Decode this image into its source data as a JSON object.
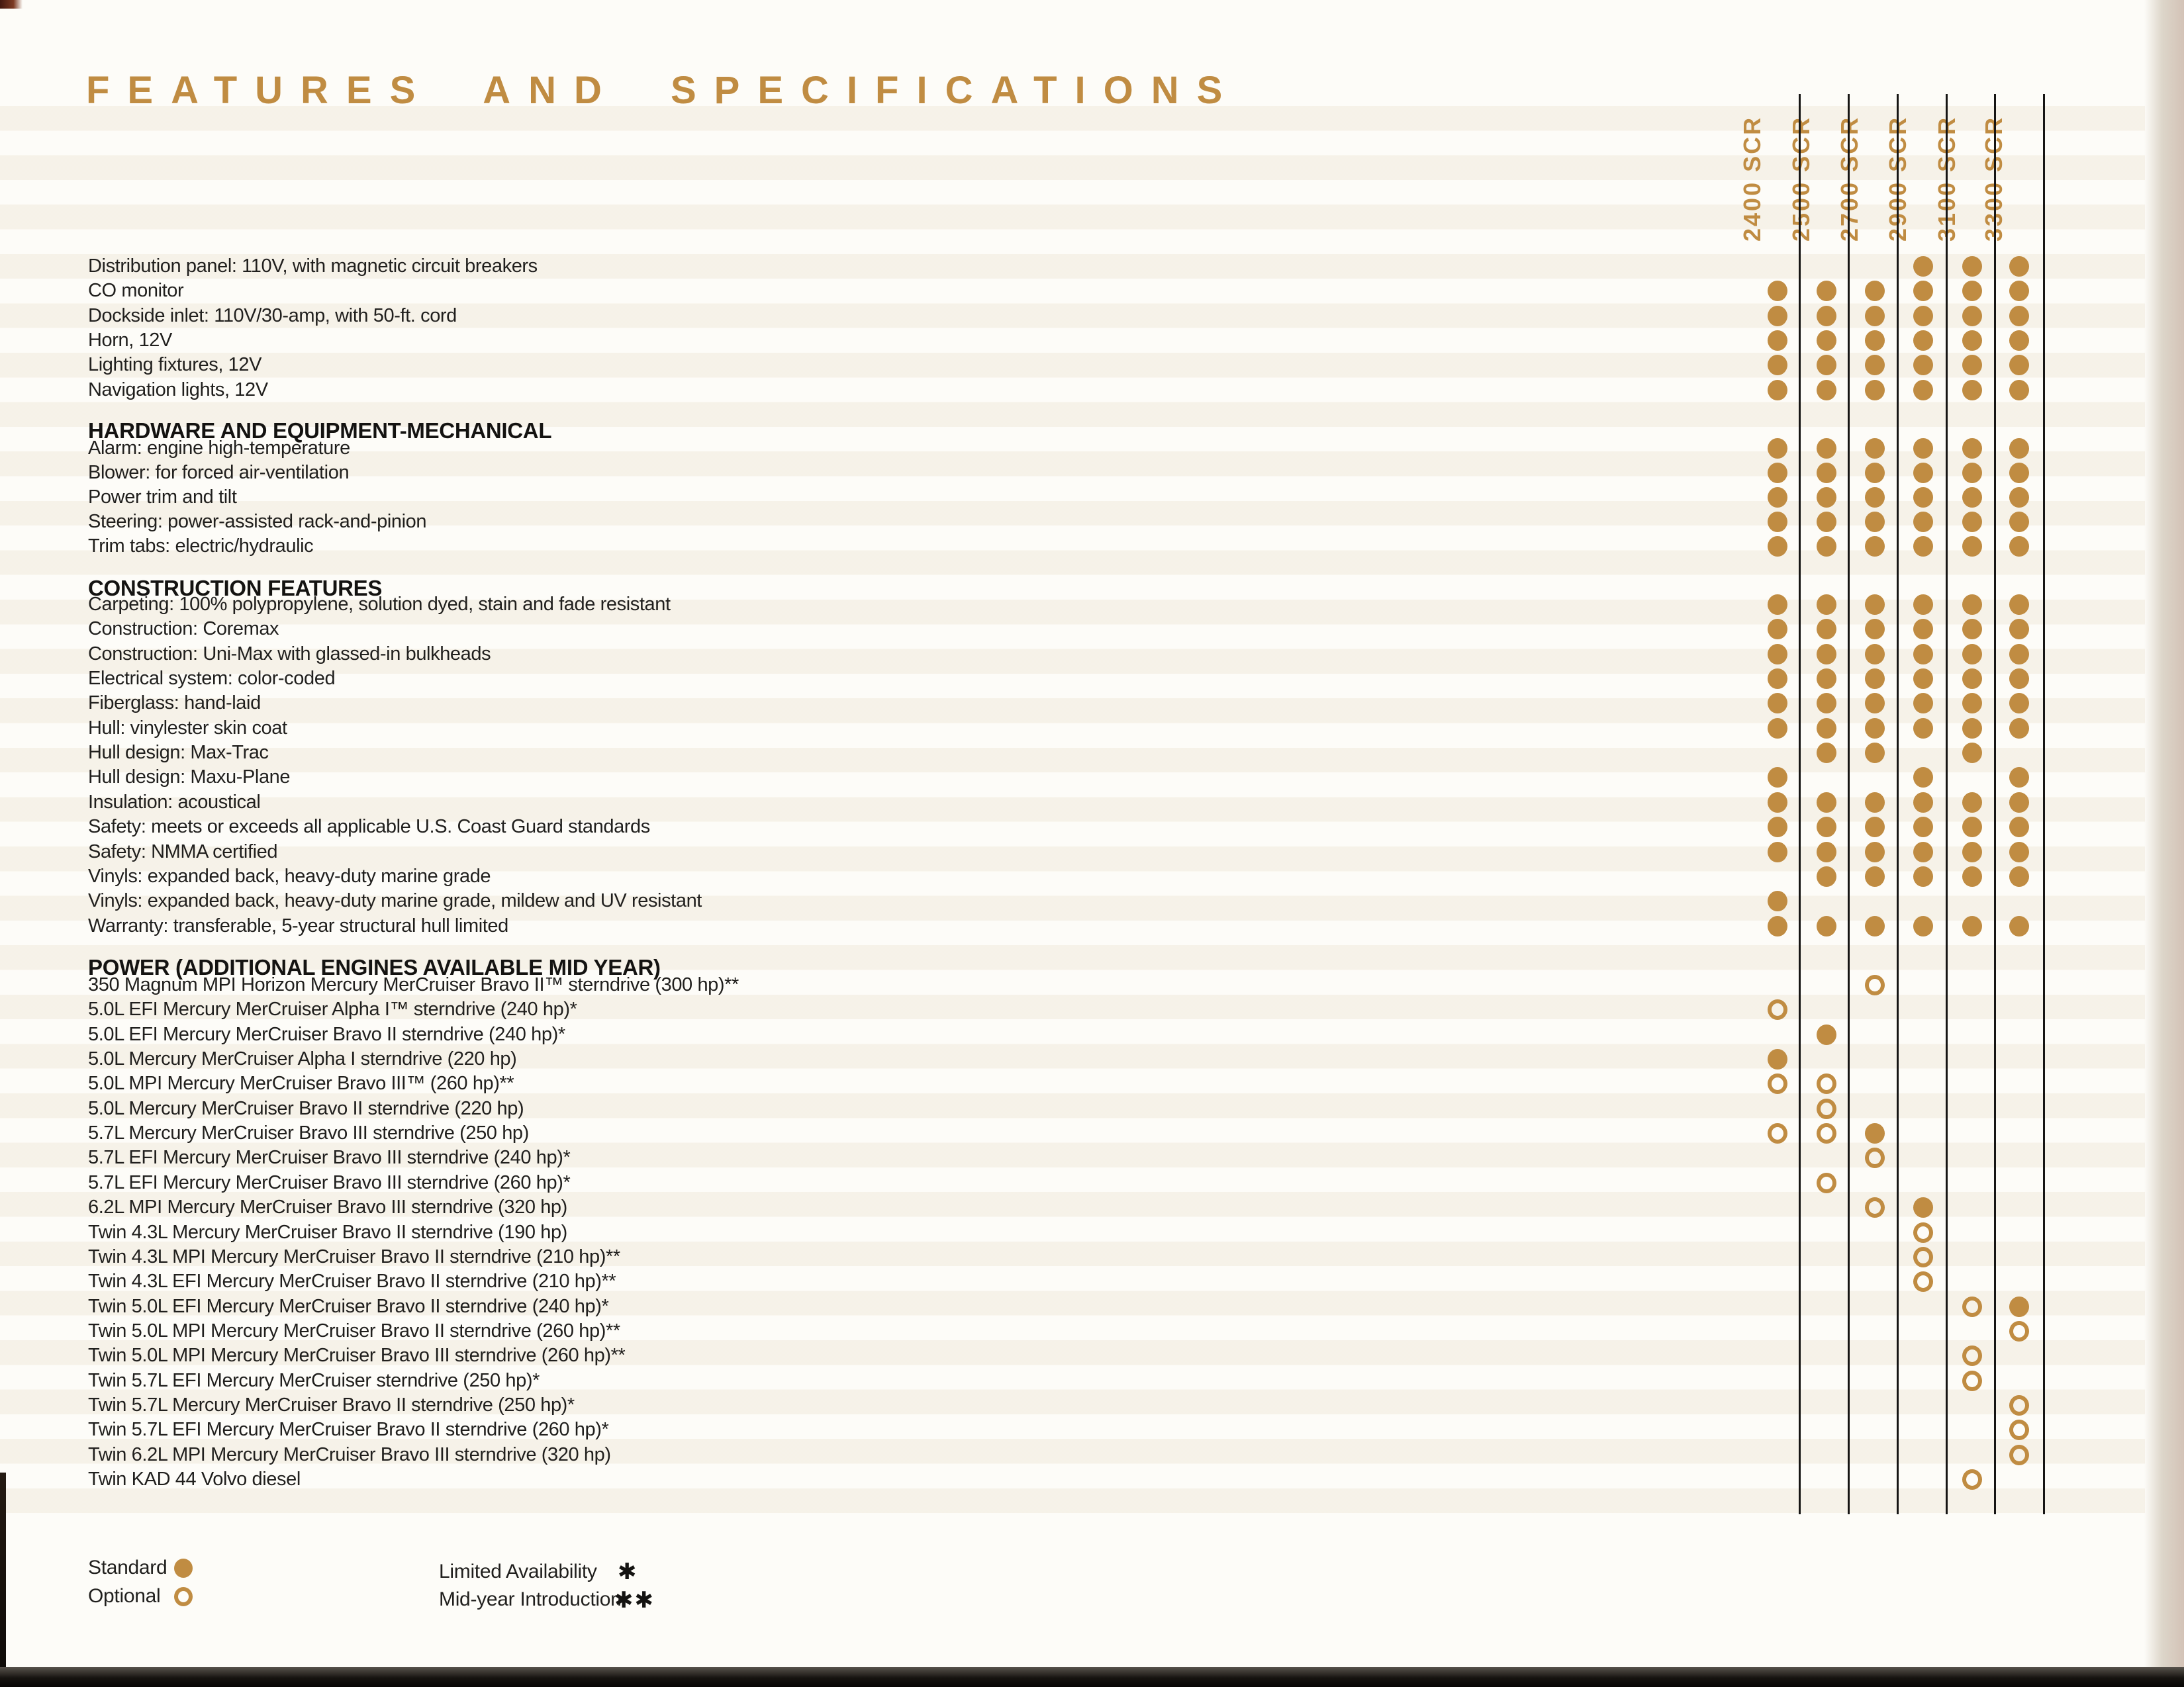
{
  "page": {
    "title": "FEATURES AND SPECIFICATIONS"
  },
  "columns": [
    "2400 SCR",
    "2500 SCR",
    "2700 SCR",
    "2900 SCR",
    "3100 SCR",
    "3300 SCR"
  ],
  "legend": {
    "standard_label": "Standard",
    "optional_label": "Optional",
    "limited_label": "Limited Availability",
    "limited_symbol": "✱",
    "midyear_label": "Mid-year Introduction",
    "midyear_symbol": "✱✱"
  },
  "colors": {
    "accent": "#c08c42",
    "line": "#161514",
    "text": "#201f1d"
  },
  "marks_key": {
    "0": "none",
    "1": "standard",
    "2": "optional"
  },
  "sections": [
    {
      "header": null,
      "rows": [
        {
          "label": "Distribution panel: 110V, with magnetic circuit breakers",
          "marks": [
            0,
            0,
            0,
            1,
            1,
            1
          ]
        },
        {
          "label": "CO monitor",
          "marks": [
            1,
            1,
            1,
            1,
            1,
            1
          ]
        },
        {
          "label": "Dockside inlet: 110V/30-amp, with 50-ft. cord",
          "marks": [
            1,
            1,
            1,
            1,
            1,
            1
          ]
        },
        {
          "label": "Horn, 12V",
          "marks": [
            1,
            1,
            1,
            1,
            1,
            1
          ]
        },
        {
          "label": "Lighting fixtures, 12V",
          "marks": [
            1,
            1,
            1,
            1,
            1,
            1
          ]
        },
        {
          "label": "Navigation lights, 12V",
          "marks": [
            1,
            1,
            1,
            1,
            1,
            1
          ]
        }
      ]
    },
    {
      "header": "HARDWARE AND EQUIPMENT-MECHANICAL",
      "rows": [
        {
          "label": "Alarm: engine high-temperature",
          "marks": [
            1,
            1,
            1,
            1,
            1,
            1
          ]
        },
        {
          "label": "Blower: for forced air-ventilation",
          "marks": [
            1,
            1,
            1,
            1,
            1,
            1
          ]
        },
        {
          "label": "Power trim and tilt",
          "marks": [
            1,
            1,
            1,
            1,
            1,
            1
          ]
        },
        {
          "label": "Steering: power-assisted rack-and-pinion",
          "marks": [
            1,
            1,
            1,
            1,
            1,
            1
          ]
        },
        {
          "label": "Trim tabs: electric/hydraulic",
          "marks": [
            1,
            1,
            1,
            1,
            1,
            1
          ]
        }
      ]
    },
    {
      "header": "CONSTRUCTION FEATURES",
      "rows": [
        {
          "label": "Carpeting: 100% polypropylene, solution dyed, stain and fade resistant",
          "marks": [
            1,
            1,
            1,
            1,
            1,
            1
          ]
        },
        {
          "label": "Construction: Coremax",
          "marks": [
            1,
            1,
            1,
            1,
            1,
            1
          ]
        },
        {
          "label": "Construction: Uni-Max with glassed-in bulkheads",
          "marks": [
            1,
            1,
            1,
            1,
            1,
            1
          ]
        },
        {
          "label": "Electrical system: color-coded",
          "marks": [
            1,
            1,
            1,
            1,
            1,
            1
          ]
        },
        {
          "label": "Fiberglass: hand-laid",
          "marks": [
            1,
            1,
            1,
            1,
            1,
            1
          ]
        },
        {
          "label": "Hull: vinylester skin coat",
          "marks": [
            1,
            1,
            1,
            1,
            1,
            1
          ]
        },
        {
          "label": "Hull design: Max-Trac",
          "marks": [
            0,
            1,
            1,
            0,
            1,
            0
          ]
        },
        {
          "label": "Hull design: Maxu-Plane",
          "marks": [
            1,
            0,
            0,
            1,
            0,
            1
          ]
        },
        {
          "label": "Insulation: acoustical",
          "marks": [
            1,
            1,
            1,
            1,
            1,
            1
          ]
        },
        {
          "label": "Safety: meets or exceeds all applicable U.S. Coast Guard standards",
          "marks": [
            1,
            1,
            1,
            1,
            1,
            1
          ]
        },
        {
          "label": "Safety: NMMA certified",
          "marks": [
            1,
            1,
            1,
            1,
            1,
            1
          ]
        },
        {
          "label": "Vinyls: expanded back, heavy-duty marine grade",
          "marks": [
            0,
            1,
            1,
            1,
            1,
            1
          ]
        },
        {
          "label": "Vinyls: expanded back, heavy-duty marine grade, mildew and UV resistant",
          "marks": [
            1,
            0,
            0,
            0,
            0,
            0
          ]
        },
        {
          "label": "Warranty: transferable, 5-year structural hull limited",
          "marks": [
            1,
            1,
            1,
            1,
            1,
            1
          ]
        }
      ]
    },
    {
      "header": "POWER (ADDITIONAL ENGINES AVAILABLE MID YEAR)",
      "rows": [
        {
          "label": "350 Magnum MPI Horizon Mercury MerCruiser Bravo II™ sterndrive (300 hp)**",
          "marks": [
            0,
            0,
            2,
            0,
            0,
            0
          ]
        },
        {
          "label": "5.0L EFI Mercury MerCruiser Alpha I™ sterndrive (240 hp)*",
          "marks": [
            2,
            0,
            0,
            0,
            0,
            0
          ]
        },
        {
          "label": "5.0L EFI Mercury MerCruiser Bravo II sterndrive (240 hp)*",
          "marks": [
            0,
            1,
            0,
            0,
            0,
            0
          ]
        },
        {
          "label": "5.0L Mercury MerCruiser Alpha I sterndrive (220 hp)",
          "marks": [
            1,
            0,
            0,
            0,
            0,
            0
          ]
        },
        {
          "label": "5.0L MPI Mercury MerCruiser Bravo III™ (260 hp)**",
          "marks": [
            2,
            2,
            0,
            0,
            0,
            0
          ]
        },
        {
          "label": "5.0L Mercury MerCruiser Bravo II sterndrive (220 hp)",
          "marks": [
            0,
            2,
            0,
            0,
            0,
            0
          ]
        },
        {
          "label": "5.7L Mercury MerCruiser Bravo III sterndrive (250 hp)",
          "marks": [
            2,
            2,
            1,
            0,
            0,
            0
          ]
        },
        {
          "label": "5.7L EFI Mercury MerCruiser Bravo III sterndrive (240 hp)*",
          "marks": [
            0,
            0,
            2,
            0,
            0,
            0
          ]
        },
        {
          "label": "5.7L EFI Mercury MerCruiser Bravo III sterndrive (260 hp)*",
          "marks": [
            0,
            2,
            0,
            0,
            0,
            0
          ]
        },
        {
          "label": "6.2L MPI Mercury MerCruiser Bravo III sterndrive (320 hp)",
          "marks": [
            0,
            0,
            2,
            1,
            0,
            0
          ]
        },
        {
          "label": "Twin 4.3L Mercury MerCruiser Bravo II sterndrive (190 hp)",
          "marks": [
            0,
            0,
            0,
            2,
            0,
            0
          ]
        },
        {
          "label": "Twin 4.3L MPI Mercury MerCruiser Bravo II sterndrive (210 hp)**",
          "marks": [
            0,
            0,
            0,
            2,
            0,
            0
          ]
        },
        {
          "label": "Twin 4.3L EFI Mercury MerCruiser Bravo II sterndrive (210 hp)**",
          "marks": [
            0,
            0,
            0,
            2,
            0,
            0
          ]
        },
        {
          "label": "Twin 5.0L EFI Mercury MerCruiser Bravo II sterndrive (240 hp)*",
          "marks": [
            0,
            0,
            0,
            0,
            2,
            1
          ]
        },
        {
          "label": "Twin 5.0L MPI Mercury MerCruiser Bravo II sterndrive (260 hp)**",
          "marks": [
            0,
            0,
            0,
            0,
            0,
            2
          ]
        },
        {
          "label": "Twin 5.0L MPI Mercury MerCruiser Bravo III sterndrive (260 hp)**",
          "marks": [
            0,
            0,
            0,
            0,
            2,
            0
          ]
        },
        {
          "label": "Twin 5.7L EFI Mercury MerCruiser sterndrive (250 hp)*",
          "marks": [
            0,
            0,
            0,
            0,
            2,
            0
          ]
        },
        {
          "label": "Twin 5.7L Mercury MerCruiser Bravo II sterndrive (250 hp)*",
          "marks": [
            0,
            0,
            0,
            0,
            0,
            2
          ]
        },
        {
          "label": "Twin 5.7L EFI Mercury MerCruiser Bravo II sterndrive (260 hp)*",
          "marks": [
            0,
            0,
            0,
            0,
            0,
            2
          ]
        },
        {
          "label": "Twin 6.2L MPI Mercury MerCruiser Bravo III sterndrive (320 hp)",
          "marks": [
            0,
            0,
            0,
            0,
            0,
            2
          ]
        },
        {
          "label": "Twin KAD 44 Volvo diesel",
          "marks": [
            0,
            0,
            0,
            0,
            2,
            0
          ]
        }
      ]
    }
  ]
}
